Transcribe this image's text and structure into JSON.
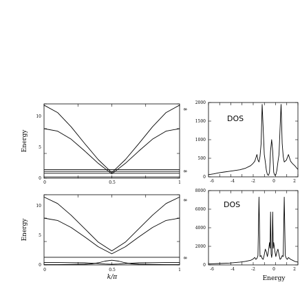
{
  "chart_data": [
    {
      "id": "band-top",
      "type": "line",
      "xlabel": "",
      "ylabel": "Energy",
      "xlim": [
        0,
        1
      ],
      "ylim": [
        0,
        12
      ],
      "xticks": [
        "0",
        "0.5",
        "1"
      ],
      "yticks": [
        "0",
        "5",
        "10"
      ],
      "side_marks": [
        "8",
        "8"
      ],
      "series": [
        {
          "x": [
            0,
            0.1,
            0.2,
            0.3,
            0.4,
            0.5,
            0.6,
            0.7,
            0.8,
            0.9,
            1.0
          ],
          "y": [
            11.8,
            10.6,
            8.3,
            5.6,
            3.0,
            0.9,
            3.0,
            5.6,
            8.3,
            10.6,
            11.8
          ]
        },
        {
          "x": [
            0,
            0.1,
            0.2,
            0.3,
            0.4,
            0.5,
            0.6,
            0.7,
            0.8,
            0.9,
            1.0
          ],
          "y": [
            8.0,
            7.6,
            6.3,
            4.4,
            2.4,
            0.7,
            2.4,
            4.4,
            6.3,
            7.6,
            8.0
          ]
        },
        {
          "x": [
            0,
            0.1,
            0.2,
            0.3,
            0.4,
            0.5,
            0.6,
            0.7,
            0.8,
            0.9,
            1.0
          ],
          "y": [
            1.4,
            1.4,
            1.4,
            1.4,
            1.4,
            1.4,
            1.4,
            1.4,
            1.4,
            1.4,
            1.4
          ]
        },
        {
          "x": [
            0,
            0.1,
            0.2,
            0.3,
            0.4,
            0.5,
            0.6,
            0.7,
            0.8,
            0.9,
            1.0
          ],
          "y": [
            1.1,
            1.1,
            1.1,
            1.1,
            1.1,
            1.1,
            1.1,
            1.1,
            1.1,
            1.1,
            1.1
          ]
        },
        {
          "x": [
            0,
            0.1,
            0.2,
            0.3,
            0.4,
            0.5,
            0.6,
            0.7,
            0.8,
            0.9,
            1.0
          ],
          "y": [
            0.8,
            0.8,
            0.8,
            0.8,
            0.8,
            0.8,
            0.8,
            0.8,
            0.8,
            0.8,
            0.8
          ]
        },
        {
          "x": [
            0,
            0.1,
            0.2,
            0.3,
            0.4,
            0.5,
            0.6,
            0.7,
            0.8,
            0.9,
            1.0
          ],
          "y": [
            0.2,
            0.2,
            0.2,
            0.2,
            0.2,
            0.2,
            0.2,
            0.2,
            0.2,
            0.2,
            0.2
          ]
        }
      ]
    },
    {
      "id": "band-bottom",
      "type": "line",
      "xlabel": "k/π",
      "ylabel": "Energy",
      "xlim": [
        0,
        1
      ],
      "ylim": [
        0,
        12
      ],
      "xticks": [
        "0",
        "0.5",
        "1"
      ],
      "yticks": [
        "0",
        "5",
        "10"
      ],
      "side_marks": [
        "8",
        "8"
      ],
      "series": [
        {
          "x": [
            0,
            0.1,
            0.2,
            0.3,
            0.4,
            0.5,
            0.6,
            0.7,
            0.8,
            0.9,
            1.0
          ],
          "y": [
            11.6,
            10.5,
            8.5,
            6.2,
            3.9,
            2.4,
            3.9,
            6.2,
            8.5,
            10.5,
            11.6
          ]
        },
        {
          "x": [
            0,
            0.1,
            0.2,
            0.3,
            0.4,
            0.5,
            0.6,
            0.7,
            0.8,
            0.9,
            1.0
          ],
          "y": [
            8.0,
            7.6,
            6.4,
            4.8,
            3.1,
            1.9,
            3.1,
            4.8,
            6.4,
            7.6,
            8.0
          ]
        },
        {
          "x": [
            0,
            0.1,
            0.2,
            0.3,
            0.4,
            0.5,
            0.6,
            0.7,
            0.8,
            0.9,
            1.0
          ],
          "y": [
            1.3,
            1.3,
            1.3,
            1.3,
            1.3,
            1.3,
            1.3,
            1.3,
            1.3,
            1.3,
            1.3
          ]
        },
        {
          "x": [
            0,
            0.1,
            0.2,
            0.3,
            0.35,
            0.4,
            0.45,
            0.5,
            0.55,
            0.6,
            0.65,
            0.7,
            0.8,
            0.9,
            1.0
          ],
          "y": [
            0.05,
            0.05,
            0.08,
            0.12,
            0.18,
            0.35,
            0.65,
            0.8,
            0.65,
            0.35,
            0.18,
            0.12,
            0.08,
            0.05,
            0.05
          ]
        },
        {
          "x": [
            0,
            0.1,
            0.2,
            0.3,
            0.4,
            0.45,
            0.5,
            0.55,
            0.6,
            0.7,
            0.8,
            0.9,
            1.0
          ],
          "y": [
            0.4,
            0.4,
            0.38,
            0.35,
            0.25,
            0.15,
            0.1,
            0.15,
            0.25,
            0.35,
            0.38,
            0.4,
            0.4
          ]
        }
      ]
    },
    {
      "id": "dos-top",
      "type": "line",
      "title": "DOS",
      "xlabel": "",
      "ylabel": "",
      "xlim": [
        -6,
        2.5
      ],
      "ylim": [
        0,
        2000
      ],
      "xticks": [
        "-6",
        "-4",
        "-2",
        "0",
        "2"
      ],
      "yticks": [
        "0",
        "500",
        "1000",
        "1500",
        "2000"
      ],
      "series": [
        {
          "x": [
            -6.0,
            -5.5,
            -5.0,
            -4.5,
            -4.0,
            -3.5,
            -3.0,
            -2.5,
            -2.0,
            -1.8,
            -1.6,
            -1.4,
            -1.3,
            -1.2,
            -1.1,
            -1.0,
            -0.9,
            -0.8,
            -0.7,
            -0.6,
            -0.5,
            -0.4,
            -0.3,
            -0.2,
            -0.1,
            0.0,
            0.1,
            0.2,
            0.3,
            0.4,
            0.5,
            0.6,
            0.7,
            0.8,
            0.9,
            1.0,
            1.1,
            1.2,
            1.4,
            1.6,
            1.8,
            2.0,
            2.2,
            2.4,
            2.5
          ],
          "y": [
            60,
            80,
            110,
            130,
            150,
            170,
            190,
            230,
            300,
            350,
            420,
            600,
            450,
            400,
            550,
            900,
            1950,
            1300,
            600,
            400,
            180,
            60,
            40,
            120,
            700,
            1000,
            700,
            120,
            40,
            60,
            180,
            400,
            600,
            1300,
            1950,
            900,
            550,
            400,
            450,
            600,
            420,
            350,
            300,
            230,
            200
          ]
        }
      ]
    },
    {
      "id": "dos-bottom",
      "type": "line",
      "title": "DOS",
      "xlabel": "Energy",
      "ylabel": "",
      "xlim": [
        -6,
        2.5
      ],
      "ylim": [
        0,
        8000
      ],
      "xticks": [
        "-6",
        "-4",
        "-2",
        "0",
        "2"
      ],
      "yticks": [
        "0",
        "2000",
        "4000",
        "6000",
        "8000"
      ],
      "series": [
        {
          "x": [
            -6.0,
            -5.0,
            -4.0,
            -3.0,
            -2.5,
            -2.0,
            -1.8,
            -1.6,
            -1.5,
            -1.4,
            -1.3,
            -1.2,
            -1.1,
            -1.0,
            -0.9,
            -0.8,
            -0.7,
            -0.6,
            -0.5,
            -0.4,
            -0.3,
            -0.2,
            -0.15,
            -0.1,
            -0.05,
            0.0,
            0.05,
            0.1,
            0.15,
            0.2,
            0.3,
            0.4,
            0.5,
            0.6,
            0.7,
            0.8,
            0.9,
            1.0,
            1.1,
            1.2,
            1.3,
            1.4,
            1.5,
            1.6,
            1.8,
            2.0,
            2.2,
            2.5
          ],
          "y": [
            100,
            150,
            200,
            300,
            380,
            500,
            600,
            800,
            600,
            700,
            1000,
            7300,
            900,
            1000,
            700,
            600,
            1100,
            1700,
            1400,
            900,
            1500,
            2400,
            1800,
            5700,
            1200,
            800,
            1200,
            5700,
            1800,
            2400,
            1500,
            900,
            1400,
            1700,
            1100,
            600,
            700,
            1000,
            900,
            7300,
            1000,
            700,
            600,
            800,
            600,
            500,
            380,
            300
          ]
        }
      ]
    }
  ]
}
